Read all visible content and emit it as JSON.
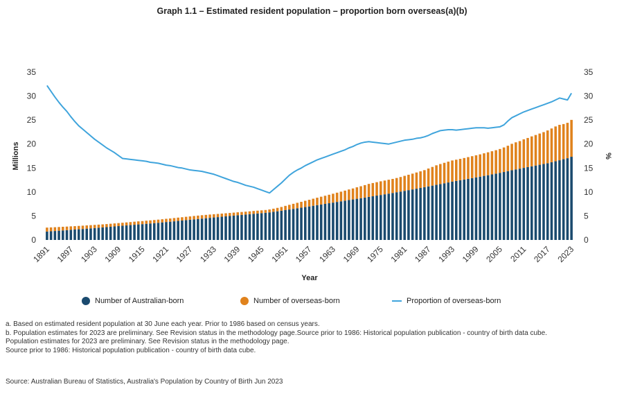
{
  "title": "Graph 1.1 – Estimated resident population – proportion born overseas(a)(b)",
  "colors": {
    "australian": "#1a4a6e",
    "overseas": "#e0821c",
    "proportion": "#3fa4dc"
  },
  "chart_data": {
    "type": "bar",
    "stacked": true,
    "xlabel": "Year",
    "ylabel": "Millions",
    "y2label": "%",
    "ylim": [
      0,
      35
    ],
    "y2lim": [
      0,
      35
    ],
    "yticks": [
      0,
      5,
      10,
      15,
      20,
      25,
      30,
      35
    ],
    "grid": false,
    "legend_position": "bottom",
    "years": [
      1891,
      1892,
      1893,
      1894,
      1895,
      1896,
      1897,
      1898,
      1899,
      1900,
      1901,
      1902,
      1903,
      1904,
      1905,
      1906,
      1907,
      1908,
      1909,
      1910,
      1911,
      1912,
      1913,
      1914,
      1915,
      1916,
      1917,
      1918,
      1919,
      1920,
      1921,
      1922,
      1923,
      1924,
      1925,
      1926,
      1927,
      1928,
      1929,
      1930,
      1931,
      1932,
      1933,
      1934,
      1935,
      1936,
      1937,
      1938,
      1939,
      1940,
      1941,
      1942,
      1943,
      1944,
      1945,
      1946,
      1947,
      1948,
      1949,
      1950,
      1951,
      1952,
      1953,
      1954,
      1955,
      1956,
      1957,
      1958,
      1959,
      1960,
      1961,
      1962,
      1963,
      1964,
      1965,
      1966,
      1967,
      1968,
      1969,
      1970,
      1971,
      1972,
      1973,
      1974,
      1975,
      1976,
      1977,
      1978,
      1979,
      1980,
      1981,
      1982,
      1983,
      1984,
      1985,
      1986,
      1987,
      1988,
      1989,
      1990,
      1991,
      1992,
      1993,
      1994,
      1995,
      1996,
      1997,
      1998,
      1999,
      2000,
      2001,
      2002,
      2003,
      2004,
      2005,
      2006,
      2007,
      2008,
      2009,
      2010,
      2011,
      2012,
      2013,
      2014,
      2015,
      2016,
      2017,
      2018,
      2019,
      2020,
      2021,
      2022,
      2023
    ],
    "tick_labels": [
      "1891",
      "1897",
      "1903",
      "1909",
      "1915",
      "1921",
      "1927",
      "1933",
      "1939",
      "1945",
      "1951",
      "1957",
      "1963",
      "1969",
      "1975",
      "1981",
      "1987",
      "1993",
      "1999",
      "2005",
      "2011",
      "2017",
      "2023"
    ],
    "series": [
      {
        "name": "Number of Australian-born",
        "kind": "bar",
        "values": [
          1.75,
          1.81,
          1.87,
          1.93,
          1.99,
          2.05,
          2.11,
          2.17,
          2.23,
          2.29,
          2.36,
          2.42,
          2.48,
          2.55,
          2.61,
          2.68,
          2.75,
          2.82,
          2.89,
          2.96,
          3.03,
          3.1,
          3.17,
          3.24,
          3.3,
          3.37,
          3.44,
          3.51,
          3.58,
          3.66,
          3.74,
          3.81,
          3.89,
          3.97,
          4.05,
          4.13,
          4.21,
          4.29,
          4.37,
          4.45,
          4.53,
          4.61,
          4.69,
          4.76,
          4.84,
          4.92,
          4.99,
          5.07,
          5.15,
          5.22,
          5.3,
          5.37,
          5.45,
          5.52,
          5.59,
          5.66,
          5.75,
          5.87,
          5.98,
          6.09,
          6.22,
          6.35,
          6.48,
          6.61,
          6.73,
          6.86,
          6.99,
          7.13,
          7.26,
          7.39,
          7.52,
          7.66,
          7.79,
          7.93,
          8.06,
          8.19,
          8.33,
          8.45,
          8.59,
          8.71,
          8.84,
          8.98,
          9.11,
          9.25,
          9.38,
          9.52,
          9.66,
          9.8,
          9.95,
          10.09,
          10.24,
          10.39,
          10.54,
          10.69,
          10.85,
          11.01,
          11.17,
          11.33,
          11.49,
          11.65,
          11.82,
          11.99,
          12.16,
          12.31,
          12.45,
          12.6,
          12.75,
          12.9,
          13.05,
          13.2,
          13.36,
          13.5,
          13.67,
          13.83,
          14.0,
          14.17,
          14.35,
          14.54,
          14.7,
          14.87,
          15.03,
          15.2,
          15.35,
          15.52,
          15.68,
          15.84,
          16.0,
          16.21,
          16.41,
          16.62,
          16.84,
          17.05,
          17.35
        ]
      },
      {
        "name": "Number of overseas-born",
        "kind": "bar",
        "values": [
          0.83,
          0.81,
          0.79,
          0.77,
          0.76,
          0.74,
          0.73,
          0.71,
          0.7,
          0.69,
          0.68,
          0.67,
          0.66,
          0.65,
          0.64,
          0.63,
          0.63,
          0.63,
          0.63,
          0.63,
          0.63,
          0.63,
          0.64,
          0.64,
          0.64,
          0.65,
          0.65,
          0.65,
          0.66,
          0.66,
          0.67,
          0.67,
          0.68,
          0.69,
          0.69,
          0.7,
          0.7,
          0.71,
          0.71,
          0.71,
          0.7,
          0.69,
          0.68,
          0.67,
          0.66,
          0.65,
          0.64,
          0.63,
          0.62,
          0.61,
          0.6,
          0.6,
          0.6,
          0.59,
          0.59,
          0.59,
          0.61,
          0.65,
          0.71,
          0.79,
          0.89,
          0.98,
          1.06,
          1.14,
          1.22,
          1.31,
          1.39,
          1.47,
          1.55,
          1.63,
          1.7,
          1.77,
          1.85,
          1.93,
          2.01,
          2.1,
          2.2,
          2.29,
          2.39,
          2.49,
          2.6,
          2.71,
          2.76,
          2.8,
          2.85,
          2.87,
          2.9,
          2.93,
          2.97,
          3.04,
          3.13,
          3.21,
          3.29,
          3.38,
          3.46,
          3.55,
          3.73,
          3.9,
          4.08,
          4.19,
          4.27,
          4.34,
          4.42,
          4.43,
          4.46,
          4.49,
          4.53,
          4.57,
          4.61,
          4.65,
          4.71,
          4.78,
          4.83,
          4.89,
          4.97,
          5.12,
          5.3,
          5.51,
          5.66,
          5.75,
          5.96,
          6.07,
          6.25,
          6.37,
          6.51,
          6.65,
          6.84,
          7.04,
          7.26,
          7.39,
          7.33,
          7.38,
          7.69
        ]
      },
      {
        "name": "Proportion of overseas-born",
        "kind": "line",
        "axis": "right",
        "values": [
          32.2,
          31.0,
          29.8,
          28.7,
          27.7,
          26.8,
          25.7,
          24.7,
          23.8,
          23.1,
          22.4,
          21.7,
          21.0,
          20.4,
          19.8,
          19.2,
          18.7,
          18.2,
          17.6,
          17.0,
          16.9,
          16.8,
          16.7,
          16.6,
          16.5,
          16.4,
          16.2,
          16.1,
          16.0,
          15.8,
          15.6,
          15.5,
          15.3,
          15.1,
          15.0,
          14.8,
          14.6,
          14.5,
          14.4,
          14.3,
          14.1,
          13.9,
          13.7,
          13.4,
          13.1,
          12.8,
          12.5,
          12.2,
          12.0,
          11.7,
          11.4,
          11.2,
          11.0,
          10.7,
          10.4,
          10.1,
          9.8,
          10.5,
          11.2,
          11.9,
          12.7,
          13.5,
          14.1,
          14.6,
          15.0,
          15.5,
          15.9,
          16.3,
          16.7,
          17.0,
          17.3,
          17.6,
          17.9,
          18.2,
          18.5,
          18.8,
          19.2,
          19.5,
          19.9,
          20.2,
          20.4,
          20.5,
          20.4,
          20.3,
          20.2,
          20.1,
          20.0,
          20.2,
          20.4,
          20.6,
          20.8,
          20.9,
          21.0,
          21.2,
          21.3,
          21.5,
          21.8,
          22.2,
          22.5,
          22.8,
          22.9,
          23.0,
          23.0,
          22.9,
          23.0,
          23.1,
          23.2,
          23.3,
          23.4,
          23.4,
          23.4,
          23.3,
          23.4,
          23.5,
          23.6,
          24.0,
          24.8,
          25.5,
          25.9,
          26.3,
          26.7,
          27.0,
          27.3,
          27.6,
          27.9,
          28.2,
          28.5,
          28.8,
          29.2,
          29.6,
          29.4,
          29.2,
          30.6
        ]
      }
    ]
  },
  "legend": {
    "australian_label": "Number of Australian-born",
    "overseas_label": "Number of overseas-born",
    "proportion_label": "Proportion of overseas-born"
  },
  "notes": [
    "a. Based on estimated resident population at 30 June each year. Prior to 1986 based on census years.",
    "b. Population estimates for 2023 are preliminary. See Revision status in the methodology page.Source prior to 1986: Historical population publication - country of birth data cube.",
    "Population estimates for 2023 are preliminary. See Revision status in the methodology page.",
    "Source prior to 1986: Historical population publication - country of birth data cube."
  ],
  "source": "Source: Australian Bureau of Statistics, Australia's Population by Country of Birth Jun 2023"
}
